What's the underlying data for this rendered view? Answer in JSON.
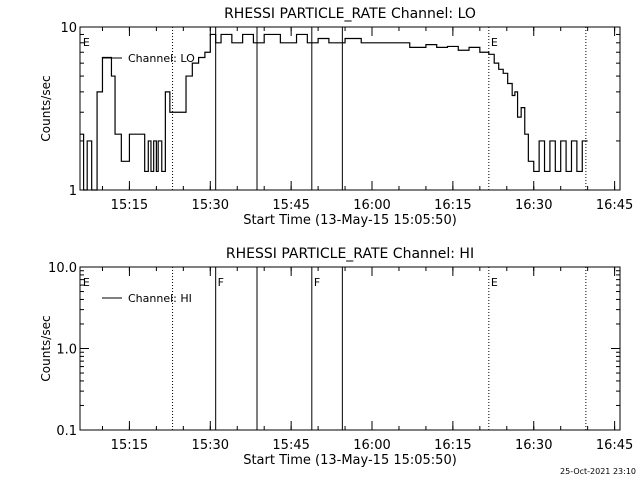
{
  "chart_data": [
    {
      "type": "line",
      "title": "RHESSI PARTICLE_RATE Channel: LO",
      "xlabel": "Start Time (13-May-15 15:05:50)",
      "ylabel": "Counts/sec",
      "y_scale": "log",
      "ylim": [
        1,
        10
      ],
      "xlim": [
        "15:05:50",
        "16:46:00"
      ],
      "x_ticks": [
        "15:15",
        "15:30",
        "15:45",
        "16:00",
        "16:15",
        "16:30",
        "16:45"
      ],
      "y_ticks": [
        "1",
        "10"
      ],
      "legend": {
        "placement": "top-left",
        "entries": [
          "Channel: LO"
        ]
      },
      "series": [
        {
          "name": "Channel: LO",
          "x": [
            "15:05:50",
            "15:06:30",
            "15:07:10",
            "15:08:00",
            "15:09:00",
            "15:10:00",
            "15:10:40",
            "15:11:40",
            "15:12:20",
            "15:13:00",
            "15:13:30",
            "15:15:00",
            "15:16:30",
            "15:17:20",
            "15:17:50",
            "15:18:30",
            "15:19:00",
            "15:19:30",
            "15:20:00",
            "15:20:20",
            "15:21:00",
            "15:21:40",
            "15:22:30",
            "15:23:00",
            "15:23:40",
            "15:24:20",
            "15:25:30",
            "15:26:40",
            "15:27:50",
            "15:29:00",
            "15:30:00",
            "15:31:00",
            "15:32:00",
            "15:34:00",
            "15:36:00",
            "15:38:00",
            "15:40:00",
            "15:43:00",
            "15:46:00",
            "15:48:00",
            "15:50:00",
            "15:52:00",
            "15:55:00",
            "15:58:00",
            "16:01:00",
            "16:04:00",
            "16:07:00",
            "16:10:00",
            "16:12:00",
            "16:14:00",
            "16:16:00",
            "16:18:00",
            "16:20:00",
            "16:21:40",
            "16:22:40",
            "16:23:30",
            "16:24:20",
            "16:25:10",
            "16:26:00",
            "16:26:30",
            "16:27:00",
            "16:27:40",
            "16:28:20",
            "16:29:00",
            "16:30:00",
            "16:31:00",
            "16:32:00",
            "16:33:00",
            "16:34:00",
            "16:35:00",
            "16:36:00",
            "16:37:00",
            "16:38:00",
            "16:39:00",
            "16:40:00"
          ],
          "values": [
            2.2,
            1,
            2,
            1,
            4,
            6.5,
            6.5,
            5,
            2.2,
            2.2,
            1.5,
            2.2,
            2.2,
            2.2,
            1.3,
            2,
            1.3,
            2,
            1.3,
            2,
            1.3,
            4,
            3,
            3,
            3,
            3,
            5,
            6,
            6.5,
            7,
            9,
            8,
            9,
            8,
            9,
            8,
            9,
            8,
            9,
            8,
            8.5,
            8,
            8.5,
            8,
            8,
            8,
            7.5,
            7.8,
            7.5,
            7.6,
            7.2,
            7.5,
            7,
            6.8,
            6,
            5.5,
            5.2,
            4.5,
            3.8,
            4,
            2.8,
            3.2,
            2.2,
            1.5,
            1.3,
            2,
            1.3,
            2,
            1.3,
            2,
            1.3,
            2,
            1.3,
            2,
            2
          ]
        }
      ],
      "markers": [
        {
          "time": "15:06:00",
          "label": "E",
          "style": "none"
        },
        {
          "time": "15:23:00",
          "label": "",
          "style": "dotted"
        },
        {
          "time": "15:31:00",
          "label": "",
          "style": "solid"
        },
        {
          "time": "15:38:40",
          "label": "",
          "style": "solid"
        },
        {
          "time": "15:48:50",
          "label": "",
          "style": "solid"
        },
        {
          "time": "15:54:30",
          "label": "",
          "style": "solid"
        },
        {
          "time": "16:21:40",
          "label": "E",
          "style": "dotted"
        },
        {
          "time": "16:39:40",
          "label": "",
          "style": "dotted"
        }
      ]
    },
    {
      "type": "line",
      "title": "RHESSI PARTICLE_RATE Channel: HI",
      "xlabel": "Start Time (13-May-15 15:05:50)",
      "ylabel": "Counts/sec",
      "y_scale": "log",
      "ylim": [
        0.1,
        10
      ],
      "xlim": [
        "15:05:50",
        "16:46:00"
      ],
      "x_ticks": [
        "15:15",
        "15:30",
        "15:45",
        "16:00",
        "16:15",
        "16:30",
        "16:45"
      ],
      "y_ticks": [
        "0.1",
        "1.0",
        "10.0"
      ],
      "legend": {
        "placement": "top-left",
        "entries": [
          "Channel: HI"
        ]
      },
      "series": [
        {
          "name": "Channel: HI",
          "x": [],
          "values": []
        }
      ],
      "markers": [
        {
          "time": "15:06:00",
          "label": "E",
          "style": "none"
        },
        {
          "time": "15:23:00",
          "label": "",
          "style": "dotted"
        },
        {
          "time": "15:31:00",
          "label": "F",
          "style": "solid"
        },
        {
          "time": "15:38:40",
          "label": "",
          "style": "solid"
        },
        {
          "time": "15:48:50",
          "label": "F",
          "style": "solid"
        },
        {
          "time": "15:54:30",
          "label": "",
          "style": "solid"
        },
        {
          "time": "16:21:40",
          "label": "E",
          "style": "dotted"
        },
        {
          "time": "16:39:40",
          "label": "",
          "style": "dotted"
        }
      ]
    }
  ],
  "footer": {
    "timestamp": "25-Oct-2021 23:10"
  }
}
